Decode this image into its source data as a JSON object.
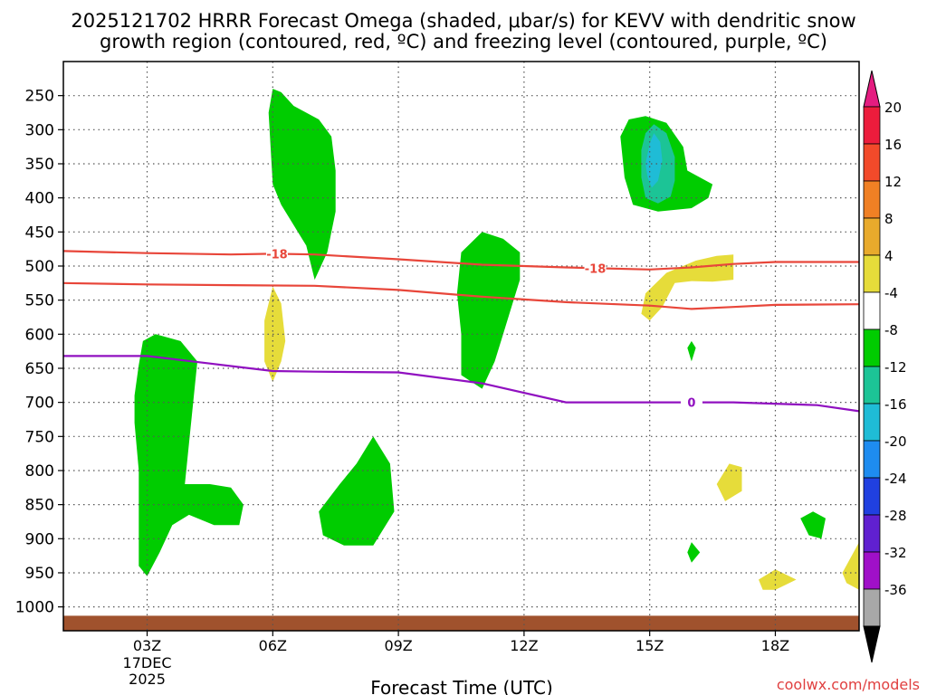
{
  "chart_data": {
    "type": "contour",
    "title_line1": "2025121702 HRRR Forecast Omega (shaded, μbar/s) for KEVV with dendritic snow",
    "title_line2": "growth region (contoured, red, ºC) and freezing level (contoured, purple, ºC)",
    "xlabel": "Forecast Time (UTC)",
    "credit": "coolwx.com/models",
    "x_range_hours": [
      1.0,
      20.0
    ],
    "y_range_hpa": [
      200,
      1035
    ],
    "x_ticks": [
      {
        "hour": 3,
        "label": "03Z"
      },
      {
        "hour": 6,
        "label": "06Z"
      },
      {
        "hour": 9,
        "label": "09Z"
      },
      {
        "hour": 12,
        "label": "12Z"
      },
      {
        "hour": 15,
        "label": "15Z"
      },
      {
        "hour": 18,
        "label": "18Z"
      }
    ],
    "date_label_day": "17DEC",
    "date_label_year": "2025",
    "y_ticks": [
      250,
      300,
      350,
      400,
      450,
      500,
      550,
      600,
      650,
      700,
      750,
      800,
      850,
      900,
      950,
      1000
    ],
    "colorbar": {
      "levels": [
        "20",
        "16",
        "12",
        "8",
        "4",
        "-4",
        "-8",
        "-12",
        "-16",
        "-20",
        "-24",
        "-28",
        "-32",
        "-36"
      ],
      "colors": [
        "#ec1c3c",
        "#f24a2a",
        "#f08024",
        "#e8aa2c",
        "#e6dc3a",
        "#ffffff",
        "#00cc00",
        "#1cc496",
        "#1fbcd6",
        "#1e8cf0",
        "#2040e0",
        "#6020d0",
        "#a010c8",
        "#a8a8a8"
      ],
      "top_triangle": "#e41c80",
      "bottom_triangle": "#000000"
    },
    "contours": {
      "dgz_upper_label": "-18",
      "dgz_upper": [
        [
          1,
          478
        ],
        [
          3,
          481
        ],
        [
          5,
          483
        ],
        [
          6,
          482
        ],
        [
          7,
          483
        ],
        [
          9,
          490
        ],
        [
          11,
          498
        ],
        [
          13,
          502
        ],
        [
          15,
          505
        ],
        [
          16,
          502
        ],
        [
          17,
          497
        ],
        [
          18,
          494
        ],
        [
          20,
          494
        ]
      ],
      "dgz_lower": [
        [
          1,
          525
        ],
        [
          3,
          527
        ],
        [
          5,
          528
        ],
        [
          7,
          529
        ],
        [
          9,
          535
        ],
        [
          11,
          545
        ],
        [
          13,
          553
        ],
        [
          15,
          558
        ],
        [
          16,
          563
        ],
        [
          17,
          560
        ],
        [
          18,
          557
        ],
        [
          20,
          556
        ]
      ],
      "freezing_label": "0",
      "freezing": [
        [
          1,
          632
        ],
        [
          3,
          632
        ],
        [
          4.5,
          643
        ],
        [
          6,
          654
        ],
        [
          7,
          655
        ],
        [
          9,
          656
        ],
        [
          11,
          672
        ],
        [
          13,
          700
        ],
        [
          15,
          700
        ],
        [
          17,
          700
        ],
        [
          19,
          704
        ],
        [
          20,
          713
        ]
      ]
    },
    "regions": [
      {
        "name": "omega-green-03z",
        "level": "-4",
        "color": "#00cc00",
        "points": [
          [
            2.8,
            645
          ],
          [
            2.9,
            610
          ],
          [
            3.2,
            600
          ],
          [
            3.8,
            610
          ],
          [
            4.2,
            640
          ],
          [
            4.1,
            700
          ],
          [
            4.0,
            760
          ],
          [
            3.9,
            820
          ],
          [
            4.5,
            820
          ],
          [
            5.0,
            825
          ],
          [
            5.3,
            850
          ],
          [
            5.2,
            880
          ],
          [
            4.6,
            880
          ],
          [
            4.0,
            865
          ],
          [
            3.6,
            880
          ],
          [
            3.3,
            920
          ],
          [
            3.0,
            955
          ],
          [
            2.8,
            940
          ],
          [
            2.8,
            880
          ],
          [
            2.8,
            800
          ],
          [
            2.7,
            730
          ],
          [
            2.7,
            690
          ]
        ]
      },
      {
        "name": "omega-green-06z",
        "level": "-4",
        "color": "#00cc00",
        "points": [
          [
            5.9,
            275
          ],
          [
            6.0,
            240
          ],
          [
            6.2,
            245
          ],
          [
            6.5,
            265
          ],
          [
            7.1,
            285
          ],
          [
            7.4,
            310
          ],
          [
            7.5,
            360
          ],
          [
            7.5,
            420
          ],
          [
            7.3,
            480
          ],
          [
            7.0,
            520
          ],
          [
            6.8,
            470
          ],
          [
            6.5,
            440
          ],
          [
            6.2,
            410
          ],
          [
            6.0,
            380
          ]
        ]
      },
      {
        "name": "omega-green-08z",
        "level": "-4",
        "color": "#00cc00",
        "points": [
          [
            7.1,
            860
          ],
          [
            7.6,
            820
          ],
          [
            8.0,
            790
          ],
          [
            8.4,
            750
          ],
          [
            8.8,
            790
          ],
          [
            8.9,
            860
          ],
          [
            8.4,
            910
          ],
          [
            7.7,
            910
          ],
          [
            7.2,
            895
          ]
        ]
      },
      {
        "name": "omega-green-11z",
        "level": "-4",
        "color": "#00cc00",
        "points": [
          [
            10.5,
            480
          ],
          [
            11.0,
            450
          ],
          [
            11.5,
            460
          ],
          [
            11.9,
            480
          ],
          [
            11.9,
            520
          ],
          [
            11.7,
            560
          ],
          [
            11.5,
            600
          ],
          [
            11.3,
            640
          ],
          [
            11.0,
            680
          ],
          [
            10.5,
            660
          ],
          [
            10.5,
            600
          ],
          [
            10.4,
            540
          ]
        ]
      },
      {
        "name": "omega-green-15z",
        "level": "-4",
        "color": "#00cc00",
        "points": [
          [
            14.3,
            310
          ],
          [
            14.5,
            285
          ],
          [
            14.9,
            280
          ],
          [
            15.4,
            290
          ],
          [
            15.8,
            325
          ],
          [
            15.9,
            360
          ],
          [
            16.5,
            380
          ],
          [
            16.4,
            400
          ],
          [
            16.0,
            415
          ],
          [
            15.2,
            420
          ],
          [
            14.6,
            410
          ],
          [
            14.4,
            370
          ]
        ]
      },
      {
        "name": "omega-teal-15z",
        "level": "-8",
        "color": "#1cc496",
        "points": [
          [
            14.8,
            330
          ],
          [
            14.9,
            305
          ],
          [
            15.1,
            292
          ],
          [
            15.4,
            305
          ],
          [
            15.6,
            340
          ],
          [
            15.6,
            375
          ],
          [
            15.5,
            398
          ],
          [
            15.2,
            408
          ],
          [
            14.9,
            400
          ],
          [
            14.8,
            370
          ]
        ]
      },
      {
        "name": "omega-cyan-15z",
        "level": "-12",
        "color": "#1fbcd6",
        "points": [
          [
            14.9,
            350
          ],
          [
            15.0,
            320
          ],
          [
            15.1,
            305
          ],
          [
            15.25,
            318
          ],
          [
            15.3,
            345
          ],
          [
            15.2,
            375
          ],
          [
            15.05,
            385
          ],
          [
            14.95,
            370
          ]
        ]
      },
      {
        "name": "omega-yellow-06z",
        "level": "4",
        "color": "#e6dc3a",
        "points": [
          [
            5.8,
            580
          ],
          [
            5.9,
            555
          ],
          [
            6.0,
            530
          ],
          [
            6.2,
            555
          ],
          [
            6.3,
            610
          ],
          [
            6.2,
            640
          ],
          [
            6.0,
            670
          ],
          [
            5.8,
            640
          ]
        ]
      },
      {
        "name": "omega-yellow-16z",
        "level": "4",
        "color": "#e6dc3a",
        "points": [
          [
            14.8,
            570
          ],
          [
            14.9,
            540
          ],
          [
            15.4,
            510
          ],
          [
            16.1,
            492
          ],
          [
            16.6,
            485
          ],
          [
            17.0,
            483
          ],
          [
            17.0,
            520
          ],
          [
            16.5,
            523
          ],
          [
            16.0,
            522
          ],
          [
            15.6,
            525
          ],
          [
            15.3,
            560
          ],
          [
            15.0,
            580
          ]
        ]
      },
      {
        "name": "omega-green-16z-small",
        "level": "-4",
        "color": "#00cc00",
        "points": [
          [
            15.9,
            620
          ],
          [
            16.0,
            610
          ],
          [
            16.1,
            620
          ],
          [
            16.0,
            640
          ]
        ]
      },
      {
        "name": "omega-yellow-17z",
        "level": "4",
        "color": "#e6dc3a",
        "points": [
          [
            16.6,
            820
          ],
          [
            16.9,
            790
          ],
          [
            17.2,
            795
          ],
          [
            17.2,
            830
          ],
          [
            16.8,
            845
          ]
        ]
      },
      {
        "name": "omega-green-16z-low",
        "level": "-4",
        "color": "#00cc00",
        "points": [
          [
            15.9,
            920
          ],
          [
            16.0,
            905
          ],
          [
            16.2,
            920
          ],
          [
            16.0,
            935
          ]
        ]
      },
      {
        "name": "omega-green-19z",
        "level": "-4",
        "color": "#00cc00",
        "points": [
          [
            18.6,
            870
          ],
          [
            18.9,
            860
          ],
          [
            19.2,
            870
          ],
          [
            19.1,
            900
          ],
          [
            18.8,
            895
          ]
        ]
      },
      {
        "name": "omega-yellow-18z",
        "level": "4",
        "color": "#e6dc3a",
        "points": [
          [
            17.6,
            960
          ],
          [
            18.0,
            945
          ],
          [
            18.5,
            960
          ],
          [
            18.0,
            975
          ],
          [
            17.7,
            975
          ]
        ]
      },
      {
        "name": "omega-yellow-20z",
        "level": "4",
        "color": "#e6dc3a",
        "points": [
          [
            19.6,
            950
          ],
          [
            20.0,
            905
          ],
          [
            20.0,
            975
          ],
          [
            19.7,
            965
          ]
        ]
      }
    ],
    "ground_pressure_hpa": 1013
  }
}
